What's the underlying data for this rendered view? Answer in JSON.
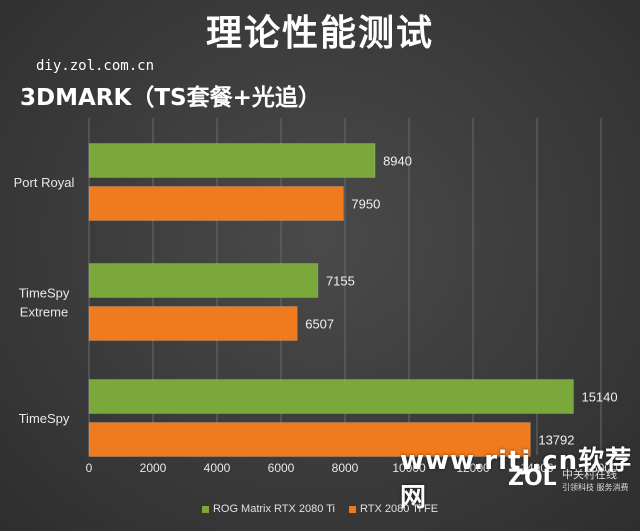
{
  "title": "理论性能测试",
  "source": "diy.zol.com.cn",
  "subtitle": "3DMARK（TS套餐+光追）",
  "watermark": "www.ritj.cn软荐网",
  "logo": {
    "text": "ZOL",
    "line1": "中关村在线",
    "line2": "引领科技 服务消费"
  },
  "colors": {
    "green": "#7aa83a",
    "orange": "#f07b1e",
    "grid": "#6a6a6a"
  },
  "chart_data": {
    "type": "bar",
    "orientation": "horizontal",
    "categories": [
      "Port Royal",
      "TimeSpy Extreme",
      "TimeSpy"
    ],
    "category_lines": [
      [
        "Port Royal"
      ],
      [
        "TimeSpy",
        "Extreme"
      ],
      [
        "TimeSpy"
      ]
    ],
    "series": [
      {
        "name": "ROG Matrix RTX 2080 Ti",
        "color": "#7aa83a",
        "values": [
          8940,
          7155,
          15140
        ]
      },
      {
        "name": "RTX 2080 Ti FE",
        "color": "#f07b1e",
        "values": [
          7950,
          6507,
          13792
        ]
      }
    ],
    "xlim": [
      0,
      16000
    ],
    "xticks": [
      "0",
      "2000",
      "4000",
      "6000",
      "8000",
      "10000",
      "12000",
      "14000",
      "16000"
    ],
    "grid": true,
    "legend": "bottom"
  }
}
